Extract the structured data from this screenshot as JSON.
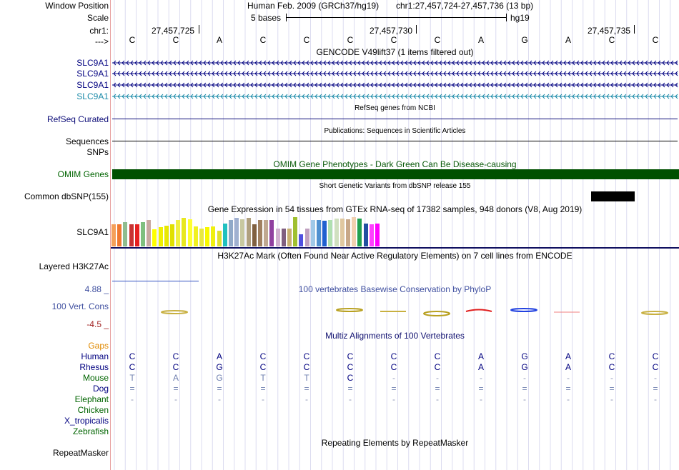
{
  "header": {
    "window_position_label": "Window Position",
    "scale_label": "Scale",
    "chr_label": "chr1:",
    "arrow_label": "--->",
    "assembly": "Human Feb. 2009 (GRCh37/hg19)",
    "position": "chr1:27,457,724-27,457,736 (13 bp)",
    "scale_text": "5 bases",
    "scale_db": "hg19",
    "ticks": [
      "27,457,725",
      "27,457,730",
      "27,457,735"
    ]
  },
  "bases": [
    "C",
    "C",
    "A",
    "C",
    "C",
    "C",
    "C",
    "C",
    "A",
    "G",
    "A",
    "C",
    "C"
  ],
  "tracks": {
    "gencode_title": "GENCODE V49lift37 (1 items filtered out)",
    "gencode_genes": [
      "SLC9A1",
      "SLC9A1",
      "SLC9A1",
      "SLC9A1"
    ],
    "refseq_title": "RefSeq genes from NCBI",
    "refseq_label": "RefSeq Curated",
    "pubs_title": "Publications: Sequences in Scientific Articles",
    "sequences_label": "Sequences",
    "snps_label": "SNPs",
    "omim_title": "OMIM Gene Phenotypes - Dark Green Can Be Disease-causing",
    "omim_label": "OMIM Genes",
    "dbsnp_title": "Short Genetic Variants from dbSNP release 155",
    "dbsnp_label": "Common dbSNP(155)",
    "gtex_title": "Gene Expression in 54 tissues from GTEx RNA-seq of 17382 samples, 948 donors (V8, Aug 2019)",
    "gtex_label": "SLC9A1",
    "h3k27_title": "H3K27Ac Mark (Often Found Near Active Regulatory Elements) on 7 cell lines from ENCODE",
    "h3k27_label": "Layered H3K27Ac",
    "cons_max": "4.88 _",
    "cons_title": "100 vertebrates Basewise Conservation by PhyloP",
    "cons_label": "100 Vert. Cons",
    "cons_min": "-4.5 _",
    "multiz_title": "Multiz Alignments of 100 Vertebrates",
    "repeat_title": "Repeating Elements by RepeatMasker",
    "repeat_label": "RepeatMasker"
  },
  "species": [
    {
      "name": "Gaps",
      "color": "#e08a00",
      "row": []
    },
    {
      "name": "Human",
      "color": "#000080",
      "row": [
        "C",
        "C",
        "A",
        "C",
        "C",
        "C",
        "C",
        "C",
        "A",
        "G",
        "A",
        "C",
        "C"
      ]
    },
    {
      "name": "Rhesus",
      "color": "#000080",
      "row": [
        "C",
        "C",
        "G",
        "C",
        "C",
        "C",
        "C",
        "C",
        "A",
        "G",
        "A",
        "C",
        "C"
      ]
    },
    {
      "name": "Mouse",
      "color": "#006400",
      "row": [
        "T",
        "A",
        "G",
        "T",
        "T",
        "C",
        "-",
        "-",
        "-",
        "-",
        "-",
        "-",
        "-"
      ]
    },
    {
      "name": "Dog",
      "color": "#000080",
      "row": [
        "=",
        "=",
        "=",
        "=",
        "=",
        "=",
        "=",
        "=",
        "=",
        "=",
        "=",
        "=",
        "="
      ]
    },
    {
      "name": "Elephant",
      "color": "#006400",
      "row": [
        "-",
        "-",
        "-",
        "-",
        "-",
        "-",
        "-",
        "-",
        "-",
        "-",
        "-",
        "-",
        "-"
      ]
    },
    {
      "name": "Chicken",
      "color": "#006400",
      "row": []
    },
    {
      "name": "X_tropicalis",
      "color": "#000080",
      "row": []
    },
    {
      "name": "Zebrafish",
      "color": "#006400",
      "row": []
    }
  ],
  "gtex_colors": [
    "#f5a05a",
    "#f07830",
    "#8fbc8f",
    "#c83232",
    "#e62020",
    "#7fbf7f",
    "#c8a8a0",
    "#ffff00",
    "#f0f000",
    "#e8e800",
    "#e0e000",
    "#f0f040",
    "#e8e820",
    "#ffff30",
    "#f0f020",
    "#e8e840",
    "#f8f800",
    "#f0f010",
    "#e0e030",
    "#20c0c0",
    "#90a8c8",
    "#a0b0d0",
    "#c8c8a0",
    "#b0a080",
    "#806040",
    "#a08060",
    "#c0a890",
    "#9040a0",
    "#d0b0d0",
    "#806080",
    "#c8b070",
    "#a0c030",
    "#5050e0",
    "#c0a0c0",
    "#a0c8e8",
    "#5090d0",
    "#2060d0",
    "#b0e0b0",
    "#d0e0c0",
    "#e0c8a0",
    "#c8a888",
    "#f0d0b0",
    "#20a050",
    "#2050a0",
    "#ff40ff",
    "#ff00ff"
  ],
  "gtex_heights": [
    0.72,
    0.72,
    0.78,
    0.73,
    0.73,
    0.78,
    0.85,
    0.55,
    0.62,
    0.68,
    0.72,
    0.85,
    0.93,
    0.88,
    0.66,
    0.58,
    0.62,
    0.65,
    0.52,
    0.75,
    0.85,
    0.92,
    0.88,
    0.92,
    0.72,
    0.85,
    0.85,
    0.85,
    0.58,
    0.58,
    0.58,
    0.95,
    0.4,
    0.58,
    0.86,
    0.86,
    0.84,
    0.85,
    0.9,
    0.9,
    0.88,
    0.95,
    0.9,
    0.75,
    0.72,
    0.75
  ]
}
